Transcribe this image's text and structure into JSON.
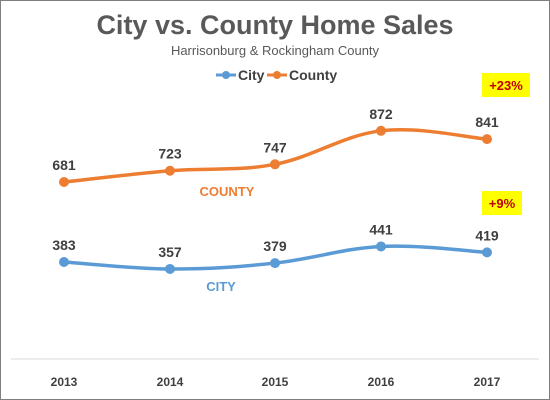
{
  "chart_data": {
    "type": "line",
    "title": "City vs. County Home Sales",
    "subtitle": "Harrisonburg & Rockingham County",
    "categories": [
      "2013",
      "2014",
      "2015",
      "2016",
      "2017"
    ],
    "series": [
      {
        "name": "City",
        "values": [
          383,
          357,
          379,
          441,
          419
        ],
        "color": "#5b9bd5",
        "annotation": "CITY",
        "change": "+9%"
      },
      {
        "name": "County",
        "values": [
          681,
          723,
          747,
          872,
          841
        ],
        "color": "#ed7d31",
        "annotation": "COUNTY",
        "change": "+23%"
      }
    ],
    "legend": {
      "position": "top"
    },
    "grid": false,
    "badge_color": "#ffff00",
    "badge_text_color": "#c00000"
  }
}
